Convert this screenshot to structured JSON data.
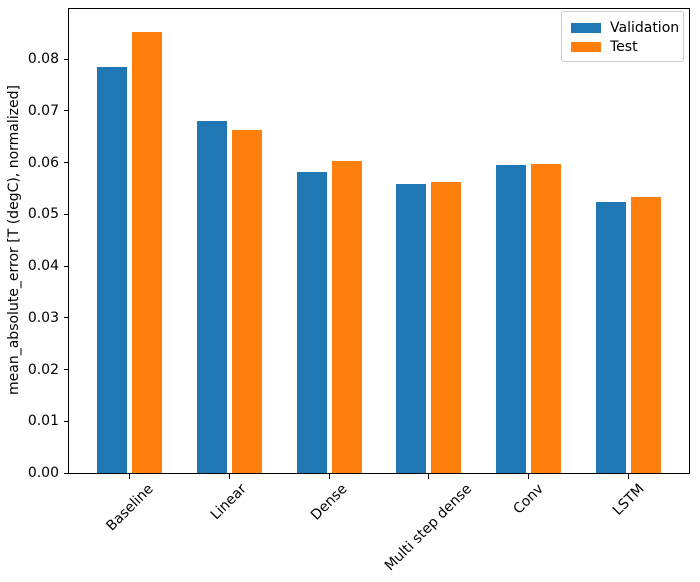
{
  "figure": {
    "background": "#ffffff",
    "spine_color": "#000000",
    "tick_color": "#000000",
    "legend_border_color": "#cccccc"
  },
  "chart_data": {
    "type": "bar",
    "title": "",
    "xlabel": "",
    "ylabel": "mean_absolute_error [T (degC), normalized]",
    "categories": [
      "Baseline",
      "Linear",
      "Dense",
      "Multi step dense",
      "Conv",
      "LSTM"
    ],
    "series": [
      {
        "name": "Validation",
        "color": "#1f77b4",
        "values": [
          0.0785,
          0.068,
          0.0582,
          0.0559,
          0.0595,
          0.0523
        ]
      },
      {
        "name": "Test",
        "color": "#ff7f0e",
        "values": [
          0.0853,
          0.0664,
          0.0604,
          0.0562,
          0.0597,
          0.0533
        ]
      }
    ],
    "ylim": [
      0,
      0.0897
    ],
    "yticks": [
      0.0,
      0.01,
      0.02,
      0.03,
      0.04,
      0.05,
      0.06,
      0.07,
      0.08
    ],
    "ytick_labels": [
      "0.00",
      "0.01",
      "0.02",
      "0.03",
      "0.04",
      "0.05",
      "0.06",
      "0.07",
      "0.08"
    ],
    "xtick_rotation_deg": 45,
    "grid": false,
    "legend": {
      "position": "upper right",
      "entries": [
        "Validation",
        "Test"
      ]
    }
  }
}
